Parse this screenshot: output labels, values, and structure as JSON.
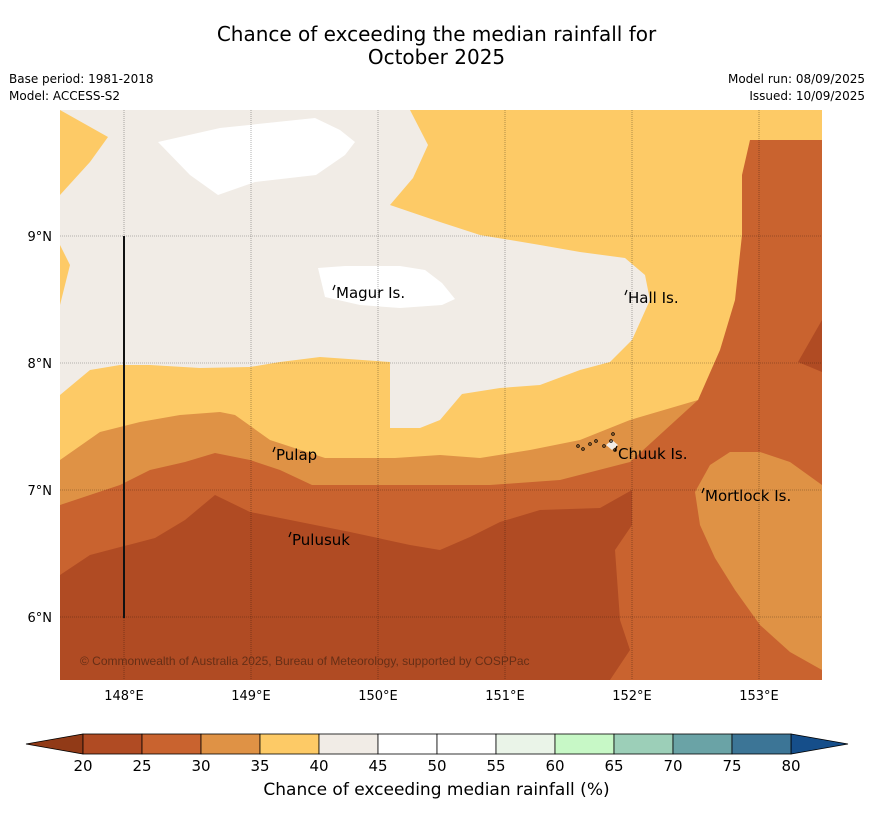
{
  "title_line1": "Chance of exceeding the median rainfall for",
  "title_line2": "October 2025",
  "meta": {
    "base_period": "Base period: 1981-2018",
    "model": "Model: ACCESS-S2",
    "model_run": "Model run: 08/09/2025",
    "issued": "Issued: 10/09/2025"
  },
  "map": {
    "lon_ticks": [
      "148°E",
      "149°E",
      "150°E",
      "151°E",
      "152°E",
      "153°E"
    ],
    "lat_ticks": [
      "9°N",
      "8°N",
      "7°N",
      "6°N"
    ],
    "places": [
      "Magur Is.",
      "Hall Is.",
      "Pulap",
      "Chuuk Is.",
      "Mortlock Is.",
      "Pulusuk"
    ],
    "copyright": "© Commonwealth of Australia 2025, Bureau of Meteorology, supported by COSPPac"
  },
  "colorbar": {
    "label": "Chance of exceeding median rainfall (%)",
    "ticks": [
      "20",
      "25",
      "30",
      "35",
      "40",
      "45",
      "50",
      "55",
      "60",
      "65",
      "70",
      "75",
      "80"
    ],
    "colors": [
      "#b04b23",
      "#c9632f",
      "#df9245",
      "#fdca66",
      "#f1ece6",
      "#ffffff",
      "#ffffff",
      "#eaf4e8",
      "#c7f8c6",
      "#9ccfb8",
      "#6aa3a6",
      "#3c7596"
    ],
    "low_extend_color": "#913a17",
    "high_extend_color": "#154e8a"
  }
}
